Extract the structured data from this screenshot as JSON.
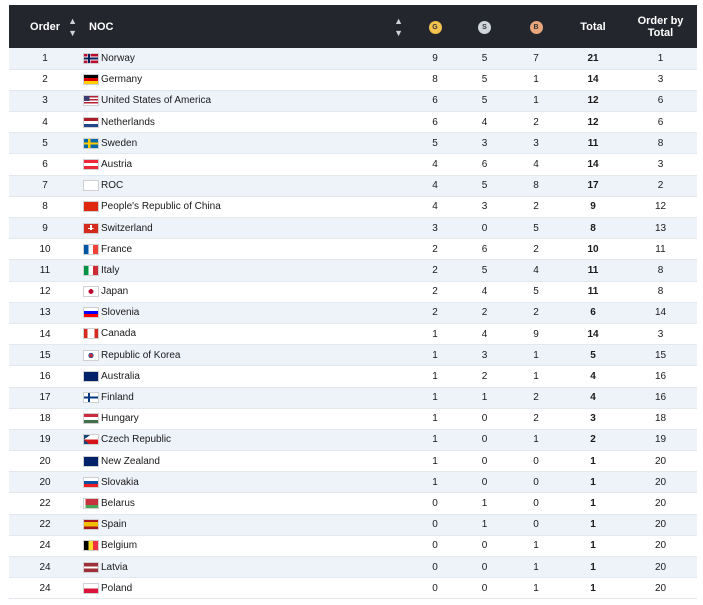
{
  "header": {
    "order": "Order",
    "noc": "NOC",
    "gold": "G",
    "silver": "S",
    "bronze": "B",
    "total": "Total",
    "order_by_total": "Order by Total"
  },
  "colors": {
    "header_bg": "#23262d",
    "gold": "#f2c14e",
    "silver": "#d0d4db",
    "bronze": "#e8a67a",
    "row_alt": "#eef2f9"
  },
  "rows": [
    {
      "order": "1",
      "noc": "Norway",
      "flag": "flag-norway",
      "g": "9",
      "s": "5",
      "b": "7",
      "total": "21",
      "rank_total": "1"
    },
    {
      "order": "2",
      "noc": "Germany",
      "flag": "flag-germany",
      "g": "8",
      "s": "5",
      "b": "1",
      "total": "14",
      "rank_total": "3"
    },
    {
      "order": "3",
      "noc": "United States of America",
      "flag": "flag-usa",
      "g": "6",
      "s": "5",
      "b": "1",
      "total": "12",
      "rank_total": "6"
    },
    {
      "order": "4",
      "noc": "Netherlands",
      "flag": "flag-netherlands",
      "g": "6",
      "s": "4",
      "b": "2",
      "total": "12",
      "rank_total": "6"
    },
    {
      "order": "5",
      "noc": "Sweden",
      "flag": "flag-sweden",
      "g": "5",
      "s": "3",
      "b": "3",
      "total": "11",
      "rank_total": "8"
    },
    {
      "order": "6",
      "noc": "Austria",
      "flag": "flag-austria",
      "g": "4",
      "s": "6",
      "b": "4",
      "total": "14",
      "rank_total": "3"
    },
    {
      "order": "7",
      "noc": "ROC",
      "flag": "flag-roc",
      "g": "4",
      "s": "5",
      "b": "8",
      "total": "17",
      "rank_total": "2"
    },
    {
      "order": "8",
      "noc": "People's Republic of China",
      "flag": "flag-china",
      "g": "4",
      "s": "3",
      "b": "2",
      "total": "9",
      "rank_total": "12"
    },
    {
      "order": "9",
      "noc": "Switzerland",
      "flag": "flag-switzerland",
      "g": "3",
      "s": "0",
      "b": "5",
      "total": "8",
      "rank_total": "13"
    },
    {
      "order": "10",
      "noc": "France",
      "flag": "flag-france",
      "g": "2",
      "s": "6",
      "b": "2",
      "total": "10",
      "rank_total": "11"
    },
    {
      "order": "11",
      "noc": "Italy",
      "flag": "flag-italy",
      "g": "2",
      "s": "5",
      "b": "4",
      "total": "11",
      "rank_total": "8"
    },
    {
      "order": "12",
      "noc": "Japan",
      "flag": "flag-japan",
      "g": "2",
      "s": "4",
      "b": "5",
      "total": "11",
      "rank_total": "8"
    },
    {
      "order": "13",
      "noc": "Slovenia",
      "flag": "flag-slovenia",
      "g": "2",
      "s": "2",
      "b": "2",
      "total": "6",
      "rank_total": "14"
    },
    {
      "order": "14",
      "noc": "Canada",
      "flag": "flag-canada",
      "g": "1",
      "s": "4",
      "b": "9",
      "total": "14",
      "rank_total": "3"
    },
    {
      "order": "15",
      "noc": "Republic of Korea",
      "flag": "flag-korea",
      "g": "1",
      "s": "3",
      "b": "1",
      "total": "5",
      "rank_total": "15"
    },
    {
      "order": "16",
      "noc": "Australia",
      "flag": "flag-australia",
      "g": "1",
      "s": "2",
      "b": "1",
      "total": "4",
      "rank_total": "16"
    },
    {
      "order": "17",
      "noc": "Finland",
      "flag": "flag-finland",
      "g": "1",
      "s": "1",
      "b": "2",
      "total": "4",
      "rank_total": "16"
    },
    {
      "order": "18",
      "noc": "Hungary",
      "flag": "flag-hungary",
      "g": "1",
      "s": "0",
      "b": "2",
      "total": "3",
      "rank_total": "18"
    },
    {
      "order": "19",
      "noc": "Czech Republic",
      "flag": "flag-czech",
      "g": "1",
      "s": "0",
      "b": "1",
      "total": "2",
      "rank_total": "19"
    },
    {
      "order": "20",
      "noc": "New Zealand",
      "flag": "flag-new-zealand",
      "g": "1",
      "s": "0",
      "b": "0",
      "total": "1",
      "rank_total": "20"
    },
    {
      "order": "20",
      "noc": "Slovakia",
      "flag": "flag-slovakia",
      "g": "1",
      "s": "0",
      "b": "0",
      "total": "1",
      "rank_total": "20"
    },
    {
      "order": "22",
      "noc": "Belarus",
      "flag": "flag-belarus",
      "g": "0",
      "s": "1",
      "b": "0",
      "total": "1",
      "rank_total": "20"
    },
    {
      "order": "22",
      "noc": "Spain",
      "flag": "flag-spain",
      "g": "0",
      "s": "1",
      "b": "0",
      "total": "1",
      "rank_total": "20"
    },
    {
      "order": "24",
      "noc": "Belgium",
      "flag": "flag-belgium",
      "g": "0",
      "s": "0",
      "b": "1",
      "total": "1",
      "rank_total": "20"
    },
    {
      "order": "24",
      "noc": "Latvia",
      "flag": "flag-latvia",
      "g": "0",
      "s": "0",
      "b": "1",
      "total": "1",
      "rank_total": "20"
    },
    {
      "order": "24",
      "noc": "Poland",
      "flag": "flag-poland",
      "g": "0",
      "s": "0",
      "b": "1",
      "total": "1",
      "rank_total": "20"
    }
  ]
}
